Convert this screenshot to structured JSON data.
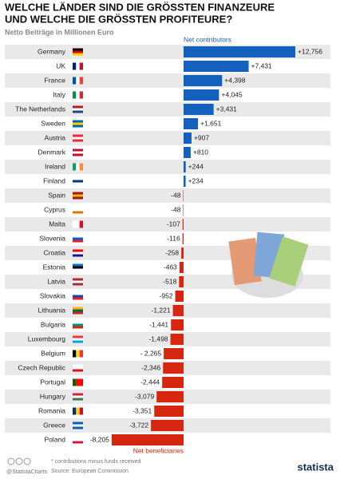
{
  "chart_data": {
    "type": "bar",
    "orientation": "horizontal",
    "title": [
      "WELCHE LÄNDER SIND DIE GRÖSSTEN FINANZEURE",
      "UND WELCHE DIE GRÖSSTEN PROFITEURE?"
    ],
    "subtitle": "Netto Beiträge in Millionen Euro",
    "annotations": {
      "positive": "Net contributors",
      "negative": "Net beneficiaries"
    },
    "categories": [
      "Germany",
      "UK",
      "France",
      "Italy",
      "The Netherlands",
      "Sweden",
      "Austria",
      "Denmark",
      "Ireland",
      "Finland",
      "Spain",
      "Cyprus",
      "Malta",
      "Slovenia",
      "Croatia",
      "Estonia",
      "Latvia",
      "Slovakia",
      "Lithuania",
      "Bulgaria",
      "Luxembourg",
      "Belgium",
      "Czech Republic",
      "Portugal",
      "Hungary",
      "Romania",
      "Greece",
      "Poland"
    ],
    "values": [
      12756,
      7431,
      4398,
      4045,
      3431,
      1651,
      907,
      810,
      244,
      234,
      -48,
      -48,
      -107,
      -116,
      -258,
      -463,
      -518,
      -952,
      -1221,
      -1441,
      -1498,
      -2265,
      -2346,
      -2444,
      -3079,
      -3351,
      -3722,
      -8205
    ],
    "value_labels": [
      "+12,756",
      "+7,431",
      "+4,398",
      "+4,045",
      "+3,431",
      "+1,651",
      "+907",
      "+810",
      "+244",
      "+234",
      "-48",
      "-48",
      "-107",
      "-116",
      "-258",
      "-463",
      "-518",
      "-952",
      "-1,221",
      "-1,441",
      "-1,498",
      "- 2,265",
      "-2,346",
      "-2,444",
      "-3,079",
      "-3,351",
      "-3,722",
      "-8,205"
    ],
    "color_positive": "#1560bd",
    "color_negative": "#d7260f",
    "footnote": "* contributions minus funds received",
    "source": "Source: European Commission",
    "handle": "@StatistaCharts",
    "brand": "statista"
  }
}
